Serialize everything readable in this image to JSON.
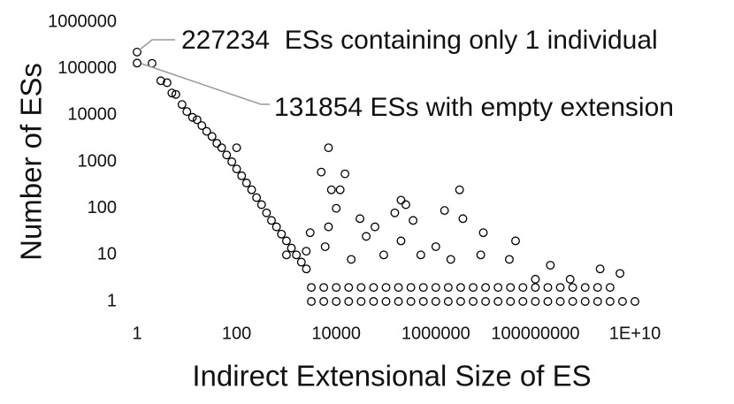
{
  "chart_data": {
    "type": "scatter",
    "x_label": "Indirect Extensional Size of ES",
    "y_label": "Number of ESs",
    "xscale": "log",
    "yscale": "log",
    "xlim": [
      1,
      10000000000
    ],
    "ylim": [
      1,
      1000000
    ],
    "xticks": [
      1,
      100,
      10000,
      1000000,
      100000000,
      {
        "value": 10000000000,
        "label": "1E+10"
      }
    ],
    "yticks": [
      1,
      10,
      100,
      1000,
      10000,
      100000,
      1000000
    ],
    "color": "#000000",
    "annotations": [
      {
        "text": "227234  ESs containing only 1 individual",
        "x": 1,
        "y": 227234
      },
      {
        "text": "131854 ESs with empty extension",
        "x": 1,
        "y": 131854
      }
    ],
    "x": [
      1,
      1,
      2,
      3,
      4,
      5,
      6,
      8,
      10,
      13,
      16,
      20,
      25,
      32,
      40,
      50,
      63,
      80,
      100,
      126,
      158,
      200,
      251,
      316,
      398,
      501,
      631,
      794,
      1000,
      1259,
      1585,
      1995,
      2512,
      100,
      1000,
      5000,
      7000,
      8000,
      12000,
      15000,
      30000,
      60000,
      150000,
      200000,
      250000,
      350000,
      1000000,
      1500000,
      3000000,
      3500000,
      8000000,
      40000000,
      100000000,
      2000000000,
      5000000000,
      200000000,
      500000000,
      30000000,
      9000000,
      2000000,
      500000,
      200000,
      90000,
      40000,
      20000,
      10000,
      7000,
      6000,
      3000,
      2500,
      3162,
      5623,
      10000,
      17783,
      31623,
      56234,
      100000,
      177828,
      316228,
      562341,
      1000000,
      1778279,
      3162278,
      5623413,
      10000000,
      17782794,
      31622777,
      56234133,
      100000000,
      177827941,
      316227766,
      562341325,
      1000000000,
      1778279410,
      3162277660,
      5623413252,
      10000000000,
      3162,
      5623,
      10000,
      17783,
      31623,
      56234,
      100000,
      177828,
      316228,
      562341,
      1000000,
      1778279,
      3162278,
      5623413,
      10000000,
      17782794,
      31622777,
      56234133,
      100000000,
      177827941,
      316227766,
      562341325,
      1000000000,
      1778279410,
      3162277660
    ],
    "values": [
      227234,
      131854,
      130000,
      55000,
      50000,
      30000,
      28000,
      17000,
      12000,
      9000,
      8000,
      6000,
      4500,
      3500,
      2500,
      2000,
      1400,
      1000,
      700,
      500,
      350,
      250,
      170,
      120,
      80,
      55,
      40,
      28,
      20,
      14,
      10,
      7,
      5,
      2000,
      10,
      600,
      2000,
      250,
      250,
      550,
      60,
      40,
      80,
      150,
      120,
      55,
      15,
      90,
      250,
      60,
      10,
      20,
      3,
      5,
      4,
      6,
      3,
      8,
      30,
      8,
      10,
      20,
      10,
      25,
      8,
      100,
      40,
      15,
      30,
      12,
      1,
      1,
      1,
      1,
      1,
      1,
      1,
      1,
      1,
      1,
      1,
      1,
      1,
      1,
      1,
      1,
      1,
      1,
      1,
      1,
      1,
      1,
      1,
      1,
      1,
      1,
      1,
      2,
      2,
      2,
      2,
      2,
      2,
      2,
      2,
      2,
      2,
      2,
      2,
      2,
      2,
      2,
      2,
      2,
      2,
      2,
      2,
      2,
      2,
      2,
      2,
      2
    ]
  }
}
